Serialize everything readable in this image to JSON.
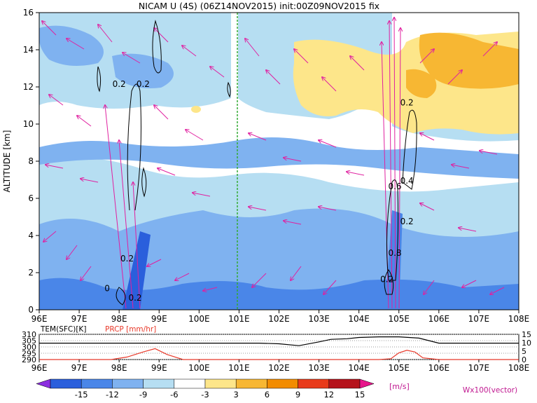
{
  "chart_data": [
    {
      "type": "heatmap",
      "title": "NICAM U (4S) (06Z14NOV2015) init:00Z09NOV2015 fix",
      "ylabel": "ALTITUDE [km]",
      "xlabel": "",
      "x_ticks": [
        "96E",
        "97E",
        "98E",
        "99E",
        "100E",
        "101E",
        "102E",
        "103E",
        "104E",
        "105E",
        "106E",
        "107E",
        "108E"
      ],
      "y_ticks": [
        "0",
        "2",
        "4",
        "6",
        "8",
        "10",
        "12",
        "14",
        "16"
      ],
      "xlim": [
        96,
        108
      ],
      "ylim": [
        0,
        16
      ],
      "vector_label": "Wx100(vector)",
      "marker_longitude": 101,
      "contour_labels": [
        {
          "text": "0.2",
          "x": 98.2,
          "y": 2.6
        },
        {
          "text": "0.2",
          "x": 98.0,
          "y": 12.0
        },
        {
          "text": "0.2",
          "x": 98.6,
          "y": 12.0
        },
        {
          "text": "0",
          "x": 97.7,
          "y": 1.0
        },
        {
          "text": "0.2",
          "x": 98.4,
          "y": 0.5
        },
        {
          "text": "0.2",
          "x": 104.7,
          "y": 1.5
        },
        {
          "text": "0.8",
          "x": 104.9,
          "y": 2.9
        },
        {
          "text": "0.2",
          "x": 105.2,
          "y": 4.6
        },
        {
          "text": "0.6",
          "x": 104.9,
          "y": 6.5
        },
        {
          "text": "0.4",
          "x": 105.2,
          "y": 6.8
        },
        {
          "text": "0.2",
          "x": 105.2,
          "y": 11.0
        }
      ],
      "colorbar": {
        "ticks": [
          "-15",
          "-12",
          "-9",
          "-6",
          "-3",
          "3",
          "6",
          "9",
          "12",
          "15"
        ],
        "unit": "[m/s]",
        "colors": [
          "#8c2ee0",
          "#2a5fdc",
          "#4a86e8",
          "#7fb2f0",
          "#b6def2",
          "#ffffff",
          "#fde68a",
          "#f7b733",
          "#f28c00",
          "#e83a1a",
          "#b5121b",
          "#e8168c"
        ]
      }
    },
    {
      "type": "line",
      "series": [
        {
          "name": "TEM(SFC)[K]",
          "color": "#000000",
          "x": [
            96,
            97,
            98,
            99,
            100,
            101,
            101.5,
            102,
            102.5,
            103,
            103.3,
            103.7,
            104,
            104.5,
            105,
            105.5,
            106,
            106.5,
            107,
            108
          ],
          "values": [
            303,
            303,
            303,
            303,
            303,
            303,
            303,
            302.5,
            301,
            304,
            306,
            306.5,
            307.5,
            308,
            308,
            307,
            303,
            303,
            303,
            303
          ]
        },
        {
          "name": "PRCP [mm/hr]",
          "color": "#e8392a",
          "x": [
            96,
            97,
            97.8,
            98.2,
            98.6,
            98.9,
            99.2,
            99.6,
            100,
            104.5,
            104.8,
            105.0,
            105.2,
            105.4,
            105.6,
            106,
            108
          ],
          "values": [
            0,
            0,
            0,
            1.5,
            4.5,
            6.5,
            3,
            0,
            0,
            0,
            0.5,
            4,
            5.5,
            4.5,
            1,
            0,
            0
          ]
        }
      ],
      "left_axis": {
        "ticks": [
          "290",
          "295",
          "300",
          "305",
          "310"
        ],
        "ylim": [
          290,
          310
        ]
      },
      "right_axis": {
        "ticks": [
          "0",
          "5",
          "10",
          "15"
        ],
        "ylim": [
          0,
          15
        ]
      },
      "x_ticks": [
        "96E",
        "97E",
        "98E",
        "99E",
        "100E",
        "101E",
        "102E",
        "103E",
        "104E",
        "105E",
        "106E",
        "107E",
        "108E"
      ]
    }
  ]
}
